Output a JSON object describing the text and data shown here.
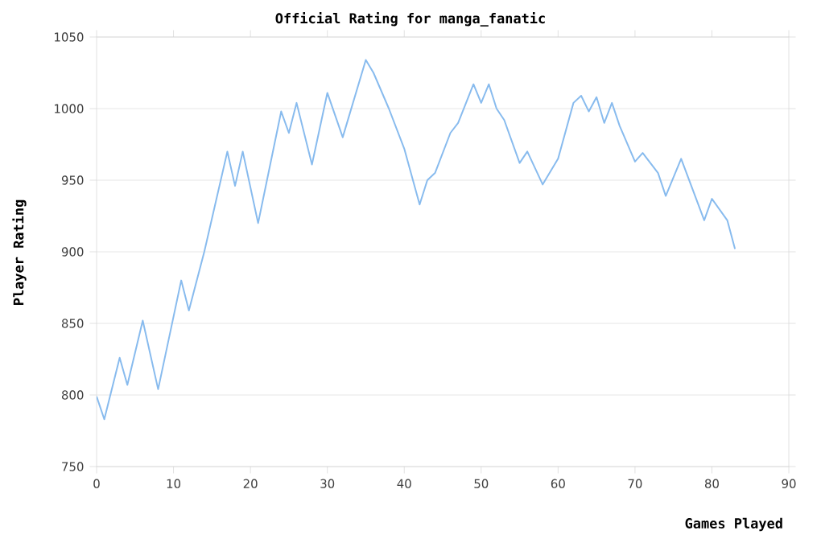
{
  "chart_data": {
    "type": "line",
    "title": "Official Rating for manga_fanatic",
    "xlabel": "Games Played",
    "ylabel": "Player Rating",
    "x": [
      0,
      1,
      3,
      4,
      6,
      8,
      11,
      12,
      14,
      17,
      18,
      19,
      21,
      24,
      25,
      26,
      28,
      30,
      32,
      35,
      36,
      38,
      40,
      42,
      43,
      44,
      46,
      47,
      49,
      50,
      51,
      52,
      53,
      55,
      56,
      58,
      60,
      62,
      63,
      64,
      65,
      66,
      67,
      68,
      70,
      71,
      72,
      73,
      74,
      76,
      79,
      80,
      82,
      83
    ],
    "series": [
      {
        "color": "#88bbee",
        "values": [
          799,
          783,
          826,
          807,
          852,
          804,
          880,
          859,
          900,
          970,
          946,
          970,
          920,
          998,
          983,
          1004,
          961,
          1011,
          980,
          1034,
          1025,
          1000,
          972,
          933,
          950,
          955,
          983,
          990,
          1017,
          1004,
          1017,
          1000,
          992,
          962,
          970,
          947,
          965,
          1004,
          1009,
          998,
          1008,
          990,
          1004,
          988,
          963,
          969,
          962,
          955,
          939,
          965,
          922,
          937,
          922,
          902
        ]
      }
    ],
    "xlim": [
      0,
      90
    ],
    "ylim": [
      750,
      1050
    ],
    "xticks": [
      0,
      10,
      20,
      30,
      40,
      50,
      60,
      70,
      80,
      90
    ],
    "yticks": [
      750,
      800,
      850,
      900,
      950,
      1000,
      1050
    ],
    "grid": "y",
    "marker": "none",
    "line_style": "solid"
  }
}
